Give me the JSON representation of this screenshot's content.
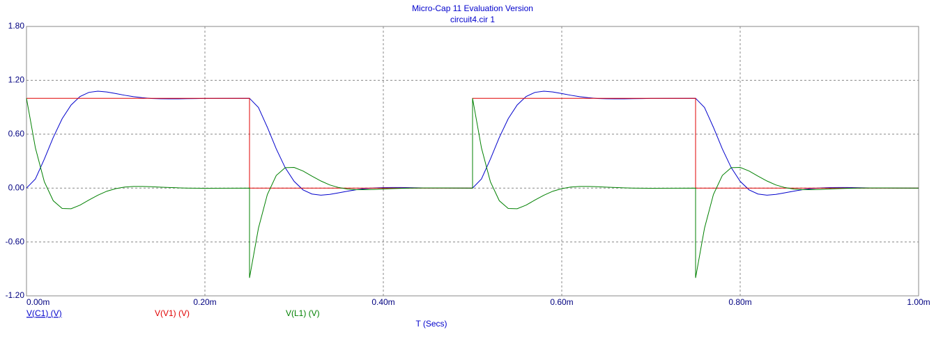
{
  "chart_data": {
    "type": "line",
    "title": "Micro-Cap 11 Evaluation Version",
    "subtitle": "circuit4.cir 1",
    "x_label": "T (Secs)",
    "xlim": [
      0,
      0.001
    ],
    "xticks": [
      {
        "value": 0,
        "label": "0.00m"
      },
      {
        "value": 0.0002,
        "label": "0.20m"
      },
      {
        "value": 0.0004,
        "label": "0.40m"
      },
      {
        "value": 0.0006,
        "label": "0.60m"
      },
      {
        "value": 0.0008,
        "label": "0.80m"
      },
      {
        "value": 0.001,
        "label": "1.00m"
      }
    ],
    "ylim": [
      -1.2,
      1.8
    ],
    "yticks": [
      {
        "value": -1.2,
        "label": "-1.20"
      },
      {
        "value": -0.6,
        "label": "-0.60"
      },
      {
        "value": 0,
        "label": "0.00"
      },
      {
        "value": 0.6,
        "label": "0.60"
      },
      {
        "value": 1.2,
        "label": "1.20"
      },
      {
        "value": 1.8,
        "label": "1.80"
      }
    ],
    "grid": true,
    "series": [
      {
        "name": "V(C1) (V)",
        "color": "#0000cc",
        "x": [
          0,
          1e-05,
          2e-05,
          3e-05,
          4e-05,
          5e-05,
          6e-05,
          7e-05,
          8e-05,
          9e-05,
          0.0001,
          0.00011,
          0.00012,
          0.00013,
          0.00014,
          0.00015,
          0.00016,
          0.00017,
          0.00018,
          0.00019,
          0.0002,
          0.00025,
          0.00025,
          0.00026,
          0.00027,
          0.00028,
          0.00029,
          0.0003,
          0.00031,
          0.00032,
          0.00033,
          0.00034,
          0.00035,
          0.00036,
          0.00037,
          0.00038,
          0.00039,
          0.0004,
          0.00041,
          0.00042,
          0.00043,
          0.00044,
          0.00045,
          0.0005,
          0.0005,
          0.00051,
          0.00052,
          0.00053,
          0.00054,
          0.00055,
          0.00056,
          0.00057,
          0.00058,
          0.00059,
          0.0006,
          0.00061,
          0.00062,
          0.00063,
          0.00064,
          0.00065,
          0.00066,
          0.00067,
          0.00068,
          0.00069,
          0.0007,
          0.00075,
          0.00075,
          0.00076,
          0.00077,
          0.00078,
          0.00079,
          0.0008,
          0.00081,
          0.00082,
          0.00083,
          0.00084,
          0.00085,
          0.00086,
          0.00087,
          0.00088,
          0.00089,
          0.0009,
          0.00091,
          0.00092,
          0.00093,
          0.00094,
          0.00095,
          0.001
        ],
        "values": [
          0,
          0.102,
          0.323,
          0.564,
          0.773,
          0.925,
          1.02,
          1.066,
          1.079,
          1.07,
          1.053,
          1.034,
          1.018,
          1.006,
          0.998,
          0.995,
          0.994,
          0.994,
          0.996,
          0.997,
          0.999,
          1,
          1,
          0.898,
          0.677,
          0.436,
          0.227,
          0.075,
          -0.02,
          -0.066,
          -0.079,
          -0.07,
          -0.053,
          -0.034,
          -0.018,
          -0.006,
          0.002,
          0.005,
          0.006,
          0.006,
          0.004,
          0.003,
          0.001,
          0,
          0,
          0.102,
          0.323,
          0.564,
          0.773,
          0.925,
          1.02,
          1.066,
          1.079,
          1.07,
          1.053,
          1.034,
          1.018,
          1.006,
          0.998,
          0.995,
          0.994,
          0.994,
          0.996,
          0.997,
          0.999,
          1,
          1,
          0.898,
          0.677,
          0.436,
          0.227,
          0.075,
          -0.02,
          -0.066,
          -0.079,
          -0.07,
          -0.053,
          -0.034,
          -0.018,
          -0.006,
          0.002,
          0.005,
          0.006,
          0.006,
          0.004,
          0.003,
          0.001,
          0
        ]
      },
      {
        "name": "V(V1) (V)",
        "color": "#e00000",
        "x": [
          0,
          0.00025,
          0.00025,
          0.0005,
          0.0005,
          0.00075,
          0.00075,
          0.001
        ],
        "values": [
          1,
          1,
          0,
          0,
          1,
          1,
          0,
          0
        ]
      },
      {
        "name": "V(L1) (V)",
        "color": "#008000",
        "x": [
          0,
          1e-05,
          2e-05,
          3e-05,
          4e-05,
          5e-05,
          6e-05,
          7e-05,
          8e-05,
          9e-05,
          0.0001,
          0.00011,
          0.00012,
          0.00013,
          0.00014,
          0.00015,
          0.00016,
          0.00017,
          0.00018,
          0.00019,
          0.0002,
          0.00025,
          0.00025,
          0.00026,
          0.00027,
          0.00028,
          0.00029,
          0.0003,
          0.00031,
          0.00032,
          0.00033,
          0.00034,
          0.00035,
          0.00036,
          0.00037,
          0.00038,
          0.00039,
          0.0004,
          0.00041,
          0.00042,
          0.00043,
          0.00044,
          0.00045,
          0.0005,
          0.0005,
          0.00051,
          0.00052,
          0.00053,
          0.00054,
          0.00055,
          0.00056,
          0.00057,
          0.00058,
          0.00059,
          0.0006,
          0.00061,
          0.00062,
          0.00063,
          0.00064,
          0.00065,
          0.00066,
          0.00067,
          0.00068,
          0.00069,
          0.0007,
          0.00075,
          0.00075,
          0.00076,
          0.00077,
          0.00078,
          0.00079,
          0.0008,
          0.00081,
          0.00082,
          0.00083,
          0.00084,
          0.00085,
          0.00086,
          0.00087,
          0.00088,
          0.00089,
          0.0009,
          0.00091,
          0.00092,
          0.00093,
          0.00094,
          0.00095,
          0.001
        ],
        "values": [
          1,
          0.447,
          0.071,
          -0.141,
          -0.227,
          -0.23,
          -0.19,
          -0.133,
          -0.079,
          -0.035,
          -0.006,
          0.011,
          0.018,
          0.018,
          0.015,
          0.01,
          0.006,
          0.003,
          0,
          -0.001,
          -0.002,
          0,
          -1,
          -0.447,
          -0.071,
          0.141,
          0.227,
          0.23,
          0.19,
          0.133,
          0.079,
          0.035,
          0.006,
          -0.011,
          -0.018,
          -0.018,
          -0.015,
          -0.01,
          -0.006,
          -0.003,
          0,
          0.001,
          0.002,
          0,
          1,
          0.447,
          0.071,
          -0.141,
          -0.227,
          -0.23,
          -0.19,
          -0.133,
          -0.079,
          -0.035,
          -0.006,
          0.011,
          0.018,
          0.018,
          0.015,
          0.01,
          0.006,
          0.003,
          0,
          -0.001,
          -0.002,
          0,
          -1,
          -0.447,
          -0.071,
          0.141,
          0.227,
          0.23,
          0.19,
          0.133,
          0.079,
          0.035,
          0.006,
          -0.011,
          -0.018,
          -0.018,
          -0.015,
          -0.01,
          -0.006,
          -0.003,
          0,
          0.001,
          0.002,
          0
        ]
      }
    ]
  }
}
